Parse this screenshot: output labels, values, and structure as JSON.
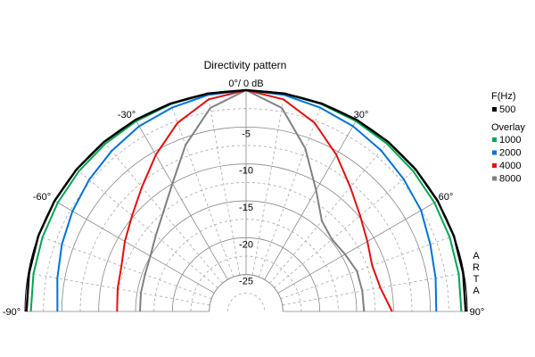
{
  "chart_data": {
    "type": "polar",
    "title": "Directivity pattern",
    "top_label": "0°/ 0 dB",
    "watermark": "ARTA",
    "angle_range_deg": [
      -90,
      90
    ],
    "db_range": [
      -30,
      0
    ],
    "angle_ticks": [
      {
        "deg": -90,
        "label": "-90°"
      },
      {
        "deg": -60,
        "label": "-60°"
      },
      {
        "deg": -30,
        "label": "-30°"
      },
      {
        "deg": 30,
        "label": "30°"
      },
      {
        "deg": 60,
        "label": "60°"
      },
      {
        "deg": 90,
        "label": "90°"
      }
    ],
    "db_ticks": [
      {
        "db": -5,
        "label": "-5"
      },
      {
        "db": -10,
        "label": "-10"
      },
      {
        "db": -15,
        "label": "-15"
      },
      {
        "db": -20,
        "label": "-20"
      },
      {
        "db": -25,
        "label": "-25"
      }
    ],
    "legend": {
      "heading": "F(Hz)",
      "overlay_heading": "Overlay",
      "entries": [
        {
          "label": "500",
          "color": "#000000"
        },
        {
          "label": "1000",
          "color": "#00a651"
        },
        {
          "label": "2000",
          "color": "#0072d6"
        },
        {
          "label": "4000",
          "color": "#e01010"
        },
        {
          "label": "8000",
          "color": "#808080"
        }
      ]
    },
    "angles": [
      -90,
      -80,
      -70,
      -60,
      -50,
      -40,
      -30,
      -20,
      -10,
      0,
      10,
      20,
      30,
      40,
      50,
      60,
      70,
      80,
      90
    ],
    "series": [
      {
        "name": "500",
        "color": "#000000",
        "width": 2.4,
        "values": [
          -0.2,
          -0.1,
          0,
          0,
          0,
          0,
          0,
          0,
          0,
          0,
          0,
          0,
          0,
          0,
          0,
          0,
          0,
          -0.1,
          -0.2
        ]
      },
      {
        "name": "1000",
        "color": "#00a651",
        "width": 2,
        "values": [
          -0.8,
          -0.7,
          -0.6,
          -0.5,
          -0.4,
          -0.3,
          -0.2,
          -0.1,
          0,
          0,
          0,
          -0.1,
          -0.2,
          -0.3,
          -0.4,
          -0.5,
          -0.6,
          -0.7,
          -0.8
        ]
      },
      {
        "name": "2000",
        "color": "#0072d6",
        "width": 2,
        "values": [
          -4.4,
          -4.0,
          -3.4,
          -2.8,
          -2.2,
          -1.6,
          -1.0,
          -0.6,
          -0.2,
          0,
          -0.2,
          -0.6,
          -1.0,
          -1.5,
          -2.1,
          -2.6,
          -3.4,
          -3.9,
          -4.2
        ]
      },
      {
        "name": "4000",
        "color": "#e01010",
        "width": 2,
        "values": [
          -12.5,
          -12.3,
          -12.0,
          -11.0,
          -9.8,
          -8.0,
          -5.5,
          -2.8,
          -0.8,
          0,
          -0.8,
          -2.8,
          -5.5,
          -8.0,
          -9.8,
          -11.0,
          -11.8,
          -11.5,
          -10.2
        ]
      },
      {
        "name": "8000",
        "color": "#808080",
        "width": 2,
        "values": [
          -15.6,
          -15.5,
          -15.4,
          -15.0,
          -14.0,
          -12.5,
          -10.0,
          -6.0,
          -2.0,
          0,
          -2.0,
          -6.5,
          -11.0,
          -14.0,
          -14.8,
          -14.5,
          -14.0,
          -14.0,
          -14.0
        ]
      }
    ],
    "grid": true
  }
}
